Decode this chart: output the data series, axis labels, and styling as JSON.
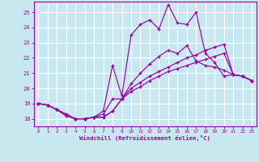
{
  "xlabel": "Windchill (Refroidissement éolien,°C)",
  "xlim": [
    -0.5,
    23.5
  ],
  "ylim": [
    17.5,
    25.7
  ],
  "yticks": [
    18,
    19,
    20,
    21,
    22,
    23,
    24,
    25
  ],
  "xticks": [
    0,
    1,
    2,
    3,
    4,
    5,
    6,
    7,
    8,
    9,
    10,
    11,
    12,
    13,
    14,
    15,
    16,
    17,
    18,
    19,
    20,
    21,
    22,
    23
  ],
  "bg_color": "#c8e8f0",
  "grid_color": "#ffffff",
  "line_color": "#990099",
  "lines": [
    {
      "x": [
        0,
        1,
        2,
        3,
        4,
        5,
        6,
        7,
        8,
        9,
        10,
        11,
        12,
        13,
        14,
        15,
        16,
        17,
        18,
        19,
        20,
        21,
        22,
        23
      ],
      "y": [
        19.0,
        18.9,
        18.6,
        18.3,
        18.0,
        18.0,
        18.1,
        18.1,
        18.5,
        19.3,
        20.0,
        20.4,
        20.8,
        21.1,
        21.4,
        21.7,
        22.0,
        22.2,
        22.5,
        22.7,
        22.9,
        20.9,
        20.8,
        20.5
      ]
    },
    {
      "x": [
        0,
        1,
        2,
        3,
        4,
        5,
        6,
        7,
        8,
        9,
        10,
        11,
        12,
        13,
        14,
        15,
        16,
        17,
        18,
        19,
        20,
        21,
        22,
        23
      ],
      "y": [
        19.0,
        18.9,
        18.6,
        18.2,
        18.0,
        18.0,
        18.1,
        18.5,
        21.5,
        19.5,
        23.5,
        24.2,
        24.5,
        23.9,
        25.5,
        24.3,
        24.2,
        25.0,
        22.3,
        21.7,
        20.8,
        20.9,
        20.8,
        20.5
      ]
    },
    {
      "x": [
        0,
        1,
        2,
        3,
        4,
        5,
        6,
        7,
        8,
        9,
        10,
        11,
        12,
        13,
        14,
        15,
        16,
        17,
        18,
        19,
        20,
        21,
        22,
        23
      ],
      "y": [
        19.0,
        18.9,
        18.6,
        18.3,
        18.0,
        18.0,
        18.1,
        18.1,
        18.5,
        19.3,
        20.3,
        21.0,
        21.6,
        22.1,
        22.5,
        22.3,
        22.8,
        21.8,
        21.5,
        21.4,
        21.2,
        20.9,
        20.8,
        20.5
      ]
    },
    {
      "x": [
        0,
        1,
        2,
        3,
        4,
        5,
        6,
        7,
        8,
        9,
        10,
        11,
        12,
        13,
        14,
        15,
        16,
        17,
        18,
        19,
        20,
        21,
        22,
        23
      ],
      "y": [
        19.0,
        18.9,
        18.6,
        18.2,
        18.0,
        18.0,
        18.1,
        18.3,
        19.3,
        19.3,
        19.8,
        20.1,
        20.5,
        20.8,
        21.1,
        21.3,
        21.5,
        21.7,
        21.9,
        22.1,
        22.3,
        20.9,
        20.8,
        20.5
      ]
    }
  ]
}
